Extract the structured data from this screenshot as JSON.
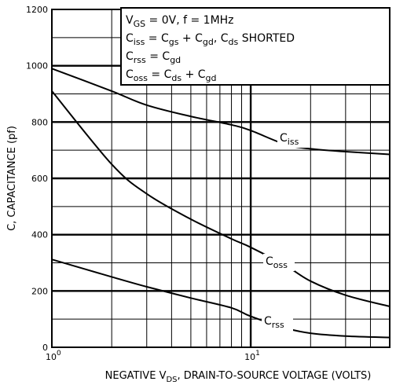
{
  "chart_data": {
    "type": "line",
    "xlabel": "NEGATIVE V_DS, DRAIN-TO-SOURCE VOLTAGE (VOLTS)",
    "ylabel": "C, CAPACITANCE (pf)",
    "x_scale": "log",
    "xlim": [
      1,
      50
    ],
    "ylim": [
      0,
      1200
    ],
    "grid": true,
    "x_major_ticks": [
      {
        "value": 1,
        "base": "10",
        "exp": "0"
      },
      {
        "value": 10,
        "base": "10",
        "exp": "1"
      }
    ],
    "y_ticks": [
      0,
      200,
      400,
      600,
      800,
      1000,
      1200
    ],
    "y_tick_labels": [
      "0",
      "200",
      "400",
      "600",
      "800",
      "1000",
      "1200"
    ],
    "conditions_box": {
      "lines": [
        "V_GS = 0V,  f = 1MHz",
        "C_iss = C_gs + C_gd,  C_ds SHORTED",
        "C_rss = C_gd",
        "C_oss = C_ds + C_gd"
      ]
    },
    "series": [
      {
        "name": "C_iss",
        "x": [
          1,
          2,
          3,
          5,
          8,
          10,
          15,
          20,
          30,
          50
        ],
        "y": [
          990,
          910,
          860,
          820,
          790,
          770,
          720,
          705,
          695,
          685
        ]
      },
      {
        "name": "C_oss",
        "x": [
          1,
          2,
          3,
          5,
          8,
          10,
          15,
          20,
          30,
          50
        ],
        "y": [
          910,
          650,
          545,
          455,
          385,
          355,
          290,
          235,
          185,
          145
        ]
      },
      {
        "name": "C_rss",
        "x": [
          1,
          2,
          3,
          5,
          8,
          10,
          15,
          20,
          30,
          50
        ],
        "y": [
          312,
          250,
          215,
          175,
          140,
          110,
          68,
          50,
          40,
          35
        ]
      }
    ]
  }
}
